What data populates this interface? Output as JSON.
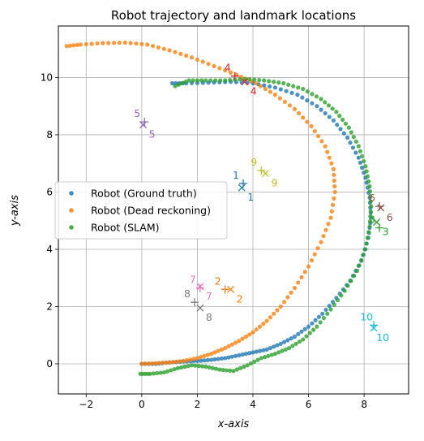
{
  "chart_data": {
    "type": "scatter",
    "title": "Robot trajectory and landmark locations",
    "xlabel": "x-axis",
    "ylabel": "y-axis",
    "xlim": [
      -3.0,
      9.6
    ],
    "ylim": [
      -1.05,
      11.8
    ],
    "xticks": [
      -2,
      0,
      2,
      4,
      6,
      8
    ],
    "yticks": [
      0,
      2,
      4,
      6,
      8,
      10
    ],
    "grid": true,
    "legend": {
      "placement": "center-left"
    },
    "series": [
      {
        "name": "Robot (Ground truth)",
        "color": "#1f77b4",
        "marker": "dot",
        "points": [
          [
            0,
            0
          ],
          [
            0.5,
            0
          ],
          [
            1,
            0.05
          ],
          [
            1.5,
            0.08
          ],
          [
            2,
            0.1
          ],
          [
            2.5,
            0.14
          ],
          [
            3,
            0.2
          ],
          [
            3.5,
            0.3
          ],
          [
            4,
            0.4
          ],
          [
            4.5,
            0.5
          ],
          [
            5,
            0.7
          ],
          [
            5.5,
            0.95
          ],
          [
            6,
            1.3
          ],
          [
            6.5,
            1.75
          ],
          [
            7,
            2.3
          ],
          [
            7.5,
            2.9
          ],
          [
            7.9,
            3.6
          ],
          [
            8.15,
            4.4
          ],
          [
            8.25,
            5.1
          ],
          [
            8.2,
            5.8
          ],
          [
            8.05,
            6.5
          ],
          [
            7.8,
            7.2
          ],
          [
            7.4,
            7.9
          ],
          [
            6.9,
            8.5
          ],
          [
            6.3,
            9.0
          ],
          [
            5.6,
            9.4
          ],
          [
            4.8,
            9.65
          ],
          [
            4,
            9.8
          ],
          [
            3.2,
            9.85
          ],
          [
            2.4,
            9.82
          ],
          [
            1.6,
            9.8
          ],
          [
            1.1,
            9.8
          ]
        ]
      },
      {
        "name": "Robot (Dead reckoning)",
        "color": "#ff7f0e",
        "marker": "dot",
        "points": [
          [
            0,
            0
          ],
          [
            0.5,
            0.02
          ],
          [
            1,
            0.05
          ],
          [
            1.5,
            0.1
          ],
          [
            2,
            0.2
          ],
          [
            2.5,
            0.35
          ],
          [
            3,
            0.55
          ],
          [
            3.5,
            0.8
          ],
          [
            4,
            1.1
          ],
          [
            4.5,
            1.5
          ],
          [
            5,
            2.0
          ],
          [
            5.5,
            2.65
          ],
          [
            6,
            3.4
          ],
          [
            6.45,
            4.25
          ],
          [
            6.8,
            5.1
          ],
          [
            6.95,
            6.0
          ],
          [
            6.9,
            6.8
          ],
          [
            6.6,
            7.6
          ],
          [
            6.1,
            8.3
          ],
          [
            5.5,
            8.9
          ],
          [
            4.8,
            9.4
          ],
          [
            4.1,
            9.8
          ],
          [
            3.4,
            10.1
          ],
          [
            2.6,
            10.4
          ],
          [
            1.8,
            10.7
          ],
          [
            1,
            10.95
          ],
          [
            0.2,
            11.15
          ],
          [
            -0.6,
            11.22
          ],
          [
            -1.4,
            11.2
          ],
          [
            -2.2,
            11.15
          ],
          [
            -2.7,
            11.1
          ]
        ]
      },
      {
        "name": "Robot (SLAM)",
        "color": "#2ca02c",
        "marker": "dot",
        "points": [
          [
            -0.05,
            -0.35
          ],
          [
            0.3,
            -0.35
          ],
          [
            0.8,
            -0.3
          ],
          [
            1.3,
            -0.15
          ],
          [
            1.8,
            -0.05
          ],
          [
            2.3,
            -0.1
          ],
          [
            2.8,
            -0.2
          ],
          [
            3.3,
            -0.25
          ],
          [
            3.8,
            -0.05
          ],
          [
            4.3,
            0.2
          ],
          [
            4.8,
            0.35
          ],
          [
            5.3,
            0.55
          ],
          [
            5.8,
            0.85
          ],
          [
            6.3,
            1.3
          ],
          [
            6.8,
            1.9
          ],
          [
            7.3,
            2.55
          ],
          [
            7.75,
            3.25
          ],
          [
            8.05,
            4.0
          ],
          [
            8.2,
            4.8
          ],
          [
            8.25,
            5.5
          ],
          [
            8.2,
            6.2
          ],
          [
            8.05,
            6.9
          ],
          [
            7.8,
            7.6
          ],
          [
            7.45,
            8.25
          ],
          [
            7,
            8.8
          ],
          [
            6.45,
            9.25
          ],
          [
            5.8,
            9.6
          ],
          [
            5.1,
            9.8
          ],
          [
            4.4,
            9.9
          ],
          [
            3.7,
            9.95
          ],
          [
            3,
            9.9
          ],
          [
            2.3,
            9.9
          ],
          [
            1.7,
            9.9
          ],
          [
            1.2,
            9.7
          ]
        ]
      }
    ],
    "landmarks": [
      {
        "id": "1",
        "color": "#1f77b4",
        "true": [
          3.65,
          6.3
        ],
        "estimated": [
          3.6,
          6.15
        ]
      },
      {
        "id": "2",
        "color": "#ff7f0e",
        "true": [
          3.0,
          2.6
        ],
        "estimated": [
          3.2,
          2.6
        ]
      },
      {
        "id": "3",
        "color": "#2ca02c",
        "true": [
          8.55,
          4.75
        ],
        "estimated": [
          8.45,
          4.95
        ]
      },
      {
        "id": "4",
        "color": "#d62728",
        "true": [
          3.35,
          10.05
        ],
        "estimated": [
          3.7,
          9.85
        ]
      },
      {
        "id": "5",
        "color": "#9467bd",
        "true": [
          0.1,
          8.45
        ],
        "estimated": [
          0.05,
          8.35
        ]
      },
      {
        "id": "6",
        "color": "#8c564b",
        "true": [
          8.55,
          5.5
        ],
        "estimated": [
          8.6,
          5.45
        ]
      },
      {
        "id": "7",
        "color": "#e377c2",
        "true": [
          2.1,
          2.65
        ],
        "estimated": [
          2.1,
          2.7
        ]
      },
      {
        "id": "8",
        "color": "#7f7f7f",
        "true": [
          1.9,
          2.15
        ],
        "estimated": [
          2.1,
          1.95
        ]
      },
      {
        "id": "9",
        "color": "#bcbd22",
        "true": [
          4.3,
          6.75
        ],
        "estimated": [
          4.45,
          6.65
        ]
      },
      {
        "id": "10",
        "color": "#17becf",
        "true": [
          8.35,
          1.35
        ],
        "estimated": [
          8.35,
          1.25
        ]
      }
    ]
  }
}
